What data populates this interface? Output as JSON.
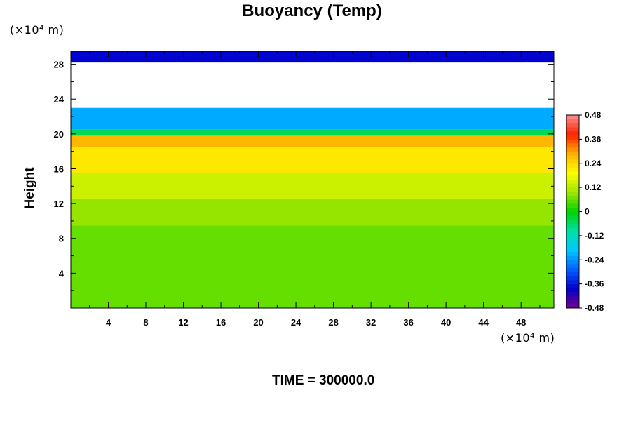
{
  "chart_data": {
    "type": "heatmap",
    "title": "Buoyancy (Temp)",
    "ylabel": "Height",
    "xlabel": "",
    "x_unit": "(×10⁴ m)",
    "y_unit": "(×10⁴ m)",
    "xlim": [
      0,
      51.5
    ],
    "ylim": [
      0,
      29.5
    ],
    "x_ticks": [
      4,
      8,
      12,
      16,
      20,
      24,
      28,
      32,
      36,
      40,
      44,
      48
    ],
    "y_ticks": [
      4,
      8,
      12,
      16,
      20,
      24,
      28
    ],
    "colorbar": {
      "min": -0.48,
      "max": 0.48,
      "tick_values": [
        0.48,
        0.36,
        0.24,
        0.12,
        0,
        -0.12,
        -0.24,
        -0.36,
        -0.48
      ],
      "tick_labels": [
        "0.48",
        "0.36",
        "0.24",
        "0.12",
        "0",
        "-0.12",
        "-0.24",
        "-0.36",
        "-0.48"
      ]
    },
    "layers": [
      {
        "y_range": [
          0,
          9.5
        ],
        "value": 0.06
      },
      {
        "y_range": [
          9.5,
          12.5
        ],
        "value": 0.09
      },
      {
        "y_range": [
          12.5,
          15.5
        ],
        "value": 0.14
      },
      {
        "y_range": [
          15.5,
          18.5
        ],
        "value": 0.22
      },
      {
        "y_range": [
          18.5,
          19.8
        ],
        "value": 0.28
      },
      {
        "y_range": [
          19.8,
          20.5
        ],
        "value": -0.05
      },
      {
        "y_range": [
          20.5,
          23
        ],
        "value": -0.22
      },
      {
        "y_range": [
          23,
          28.2
        ],
        "value": null
      },
      {
        "y_range": [
          28.2,
          29.5
        ],
        "value": -0.38
      }
    ],
    "grid": false,
    "colors": {
      "colormap": [
        "#7a008c",
        "#0000cc",
        "#0060ff",
        "#00c8ff",
        "#00e0a0",
        "#00d200",
        "#a0e600",
        "#ffff00",
        "#ffb000",
        "#ff2000",
        "#ff9090"
      ],
      "missing": "#ffffff"
    }
  },
  "footer": {
    "time_label": "TIME = 300000.0"
  }
}
